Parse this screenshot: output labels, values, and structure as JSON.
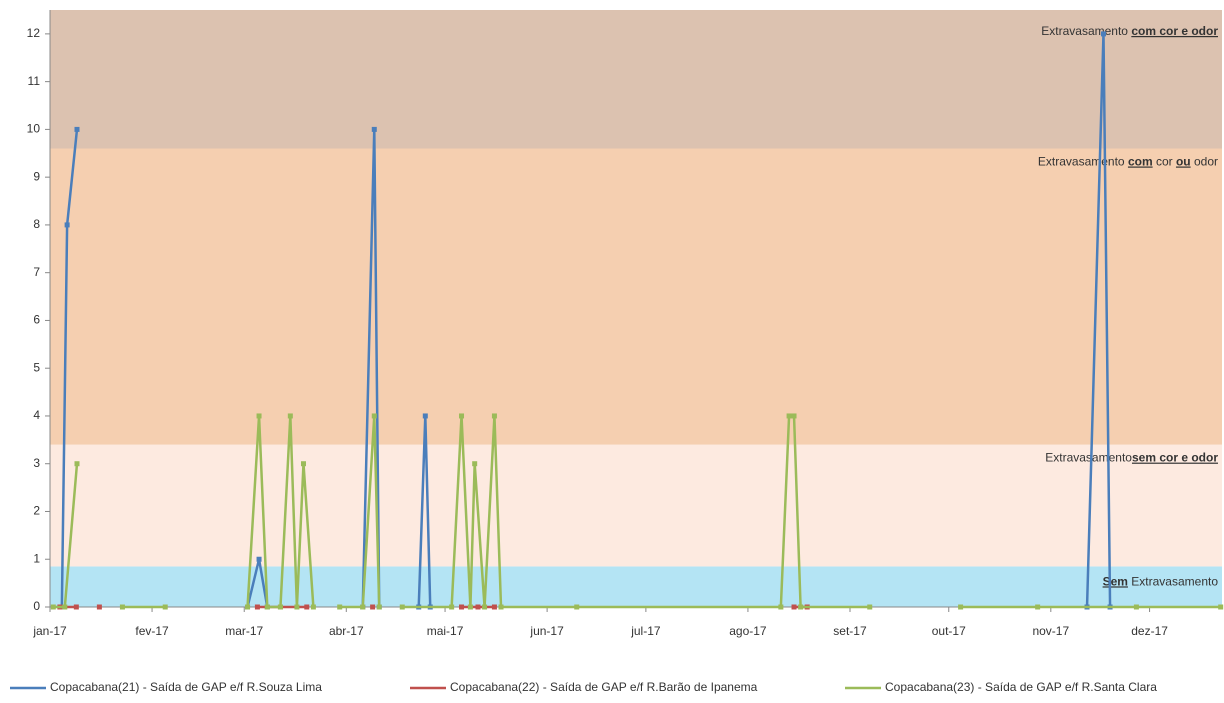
{
  "chart_data": {
    "type": "line",
    "bands": [
      {
        "from": 0,
        "to": 0.85,
        "color": "#b4e4f4",
        "label": [
          {
            "text": "Sem",
            "em": true
          },
          {
            "text": " Extravasamento"
          }
        ]
      },
      {
        "from": 0.85,
        "to": 3.4,
        "color": "#fdeae0",
        "label": [
          {
            "text": "Extravasamento"
          },
          {
            "text": "sem cor e odor",
            "em": true
          }
        ]
      },
      {
        "from": 3.4,
        "to": 9.6,
        "color": "#f5cfb0",
        "label": [
          {
            "text": "Extravasamento "
          },
          {
            "text": "com",
            "em": true
          },
          {
            "text": " cor "
          },
          {
            "text": "ou",
            "em": true
          },
          {
            "text": " odor"
          }
        ]
      },
      {
        "from": 9.6,
        "to": 12.5,
        "color": "#dcc2b0",
        "label": [
          {
            "text": "Extravasamento "
          },
          {
            "text": "com cor e odor",
            "em": true
          }
        ]
      }
    ],
    "series": [
      {
        "name": "Copacabana(21) - Saída de GAP e/f R.Souza Lima",
        "color": "#4a7ebb",
        "x": [
          3.6,
          5.2,
          8.2,
          null,
          60,
          63.5,
          66,
          null,
          95,
          98.5,
          100,
          null,
          112,
          114,
          115.5,
          null,
          315,
          320,
          322
        ],
        "values": [
          0,
          8,
          10,
          null,
          0,
          1,
          0,
          null,
          0,
          10,
          0,
          null,
          0,
          4,
          0,
          null,
          0,
          12,
          0
        ]
      },
      {
        "name": "Copacabana(22) - Saída de GAP e/f R.Barão de Ipanema",
        "color": "#c0504d",
        "x": [
          3,
          8,
          null,
          15,
          null,
          63,
          70,
          78,
          null,
          98,
          null,
          125,
          130,
          135,
          null,
          226,
          230
        ],
        "values": [
          0,
          0,
          null,
          0,
          null,
          0,
          0,
          0,
          null,
          0,
          null,
          0,
          0,
          0,
          null,
          0,
          0
        ]
      },
      {
        "name": "Copacabana(23) - Saída de GAP e/f R.Santa Clara",
        "color": "#9bbb59",
        "x": [
          1,
          4.5,
          8.2,
          null,
          22,
          35,
          null,
          60,
          63.5,
          66,
          70,
          73,
          75,
          77,
          80,
          null,
          88,
          95,
          98.5,
          100,
          null,
          107,
          122,
          125,
          127.7,
          129,
          132,
          135,
          137,
          160,
          222,
          224.5,
          226,
          228,
          249,
          null,
          276.6,
          300,
          330,
          355.6
        ],
        "values": [
          0,
          0,
          3,
          null,
          0,
          0,
          null,
          0,
          4,
          0,
          0,
          4,
          0,
          3,
          0,
          null,
          0,
          0,
          4,
          0,
          null,
          0,
          0,
          4,
          0,
          3,
          0,
          4,
          0,
          0,
          0,
          4,
          4,
          0,
          0,
          null,
          0,
          0,
          0,
          0
        ]
      }
    ],
    "xlim": [
      0,
      356
    ],
    "xticks": [
      {
        "value": 0,
        "label": "jan-17"
      },
      {
        "value": 31,
        "label": "fev-17"
      },
      {
        "value": 59,
        "label": "mar-17"
      },
      {
        "value": 90,
        "label": "abr-17"
      },
      {
        "value": 120,
        "label": "mai-17"
      },
      {
        "value": 151,
        "label": "jun-17"
      },
      {
        "value": 181,
        "label": "jul-17"
      },
      {
        "value": 212,
        "label": "ago-17"
      },
      {
        "value": 243,
        "label": "set-17"
      },
      {
        "value": 273,
        "label": "out-17"
      },
      {
        "value": 304,
        "label": "nov-17"
      },
      {
        "value": 334,
        "label": "dez-17"
      }
    ],
    "ylim": [
      0,
      12.5
    ],
    "yticks": [
      0,
      1,
      2,
      3,
      4,
      5,
      6,
      7,
      8,
      9,
      10,
      11,
      12
    ],
    "legend": "bottom"
  }
}
